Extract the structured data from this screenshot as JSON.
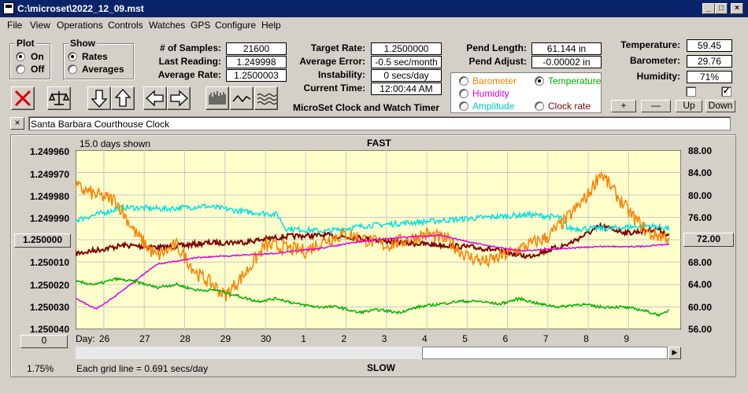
{
  "window": {
    "title": "C:\\microset\\2022_12_09.mst",
    "minimize": "_",
    "maximize": "□",
    "close": "×"
  },
  "menu": [
    "File",
    "View",
    "Operations",
    "Controls",
    "Watches",
    "GPS",
    "Configure",
    "Help"
  ],
  "plot": {
    "title": "Plot",
    "on": "On",
    "off": "Off",
    "selected": "On"
  },
  "show": {
    "title": "Show",
    "rates": "Rates",
    "averages": "Averages",
    "selected": "Rates"
  },
  "stats": {
    "samples_label": "# of Samples:",
    "samples": "21600",
    "last_reading_label": "Last Reading:",
    "last_reading": "1.249998",
    "avg_rate_label": "Average Rate:",
    "avg_rate": "1.2500003",
    "target_rate_label": "Target Rate:",
    "target_rate": "1.2500000",
    "avg_error_label": "Average Error:",
    "avg_error": "-0.5 sec/month",
    "instability_label": "Instability:",
    "instability": "0 secs/day",
    "current_time_label": "Current Time:",
    "current_time": "12:00:44 AM",
    "pend_length_label": "Pend Length:",
    "pend_length": "61.144 in",
    "pend_adjust_label": "Pend Adjust:",
    "pend_adjust": "-0.00002 in",
    "temperature_label": "Temperature:",
    "temperature": "59.45",
    "barometer_label": "Barometer:",
    "barometer": "29.76",
    "humidity_label": "Humidity:",
    "humidity": "71%"
  },
  "app_name": "MicroSet Clock and Watch Timer",
  "overlay": {
    "barometer": "Barometer",
    "temperature": "Temperature",
    "humidity": "Humidity",
    "amplitude": "Amplitude",
    "clock_rate": "Clock rate",
    "selected": "Temperature"
  },
  "scale_buttons": {
    "plus": "+",
    "minus": "—",
    "up": "Up",
    "down": "Down"
  },
  "clock_name": "Santa Barbara Courthouse Clock",
  "colors": {
    "plot_bg": "#ffffcc",
    "grid": "#c8c8c8",
    "barometer": "#ff8000",
    "temperature": "#00b000",
    "humidity": "#e000e0",
    "amplitude": "#00e0e0",
    "clock_rate": "#800000"
  },
  "chart_data": {
    "type": "line",
    "top_label": "FAST",
    "bottom_label": "SLOW",
    "days_shown": "15.0 days shown",
    "grid_note": "Each grid line = 0.691 secs/day",
    "percent": "1.75%",
    "x_label": "Day:",
    "x_days": [
      "26",
      "27",
      "28",
      "29",
      "30",
      "1",
      "2",
      "3",
      "4",
      "5",
      "6",
      "7",
      "8",
      "9"
    ],
    "y_left_ticks": [
      "1.249960",
      "1.249970",
      "1.249980",
      "1.249990",
      "1.250000",
      "1.250010",
      "1.250020",
      "1.250030",
      "1.250040"
    ],
    "y_left_center_button": "1.250000",
    "y_right_ticks": [
      "88.00",
      "84.00",
      "80.00",
      "76.00",
      "72.00",
      "68.00",
      "64.00",
      "60.00",
      "56.00"
    ],
    "y_right_center_button": "72.00",
    "y_left_range": [
      1.24996,
      1.25004
    ],
    "y_right_range": [
      56,
      88
    ],
    "x_range": [
      25.3,
      40.3
    ],
    "offset_button": "0",
    "series": [
      {
        "key": "clock_rate",
        "axis": "left",
        "noise": 1.2e-06,
        "x": [
          25.3,
          26.5,
          27.5,
          28.5,
          29.5,
          30.5,
          31.5,
          32.5,
          33.5,
          34.5,
          35.5,
          36.5,
          37.5,
          38.3,
          39.0,
          39.7,
          40.0
        ],
        "y": [
          1.2500062,
          1.2500025,
          1.2500035,
          1.2500015,
          1.250001,
          1.2499985,
          1.249998,
          1.2499995,
          1.2500015,
          1.2500025,
          1.250004,
          1.2500075,
          1.250002,
          1.249994,
          1.249997,
          1.249995,
          1.249998
        ]
      },
      {
        "key": "amplitude",
        "axis": "right",
        "noise": 0.5,
        "x": [
          25.3,
          26.5,
          27.5,
          28.5,
          29.5,
          30.3,
          30.5,
          31.5,
          32.5,
          33.5,
          34.5,
          35.5,
          36.5,
          37.3,
          37.5,
          38.5,
          39.5,
          40.0
        ],
        "y": [
          75.5,
          77.8,
          77.5,
          78.0,
          77.0,
          76.5,
          74.0,
          73.5,
          74.5,
          75.0,
          75.5,
          76.0,
          76.5,
          76.0,
          74.0,
          74.0,
          74.5,
          74.0
        ]
      },
      {
        "key": "barometer",
        "axis": "right",
        "noise": 1.3,
        "x": [
          25.3,
          25.8,
          26.3,
          26.8,
          27.3,
          27.8,
          28.3,
          28.7,
          29.0,
          29.5,
          30.0,
          30.5,
          31.0,
          31.5,
          32.0,
          32.5,
          33.0,
          33.5,
          34.0,
          34.5,
          35.0,
          35.5,
          36.0,
          36.5,
          37.0,
          37.5,
          38.0,
          38.3,
          38.7,
          39.0,
          39.5,
          40.0
        ],
        "y": [
          81.5,
          80.0,
          79.0,
          73.0,
          69.0,
          71.0,
          66.0,
          64.0,
          62.0,
          66.0,
          71.0,
          70.5,
          70.0,
          72.0,
          73.0,
          72.0,
          71.0,
          72.0,
          73.0,
          72.0,
          69.0,
          68.0,
          69.5,
          71.0,
          72.5,
          76.0,
          80.0,
          84.0,
          80.0,
          77.0,
          73.0,
          72.5
        ]
      },
      {
        "key": "humidity",
        "axis": "left",
        "noise": 3e-07,
        "x": [
          25.3,
          25.8,
          26.3,
          26.8,
          27.3,
          28.3,
          29.3,
          30.3,
          31.3,
          32.3,
          33.3,
          34.3,
          35.3,
          36.3,
          37.3,
          38.3,
          39.3,
          40.0
        ],
        "y": [
          1.250026,
          1.250031,
          1.250025,
          1.250018,
          1.250011,
          1.250008,
          1.250007,
          1.250006,
          1.250004,
          1.250001,
          1.249999,
          1.249998,
          1.250002,
          1.250005,
          1.250004,
          1.250003,
          1.250003,
          1.250002
        ]
      },
      {
        "key": "temperature",
        "axis": "right",
        "noise": 0.25,
        "x": [
          25.3,
          25.8,
          26.3,
          26.8,
          27.3,
          27.8,
          28.3,
          28.8,
          29.3,
          29.8,
          30.3,
          30.8,
          31.3,
          31.8,
          32.3,
          32.8,
          33.3,
          33.8,
          34.3,
          34.8,
          35.3,
          35.8,
          36.3,
          36.8,
          37.3,
          37.8,
          38.3,
          38.8,
          39.3,
          39.8,
          40.0
        ],
        "y": [
          64.5,
          64.0,
          65.0,
          64.5,
          63.5,
          64.0,
          63.0,
          63.0,
          62.0,
          61.0,
          61.5,
          60.5,
          60.0,
          60.0,
          59.0,
          59.5,
          59.0,
          60.0,
          60.5,
          61.0,
          61.0,
          60.5,
          61.5,
          60.5,
          60.0,
          60.5,
          60.0,
          60.0,
          59.5,
          58.5,
          59.5
        ]
      }
    ]
  }
}
